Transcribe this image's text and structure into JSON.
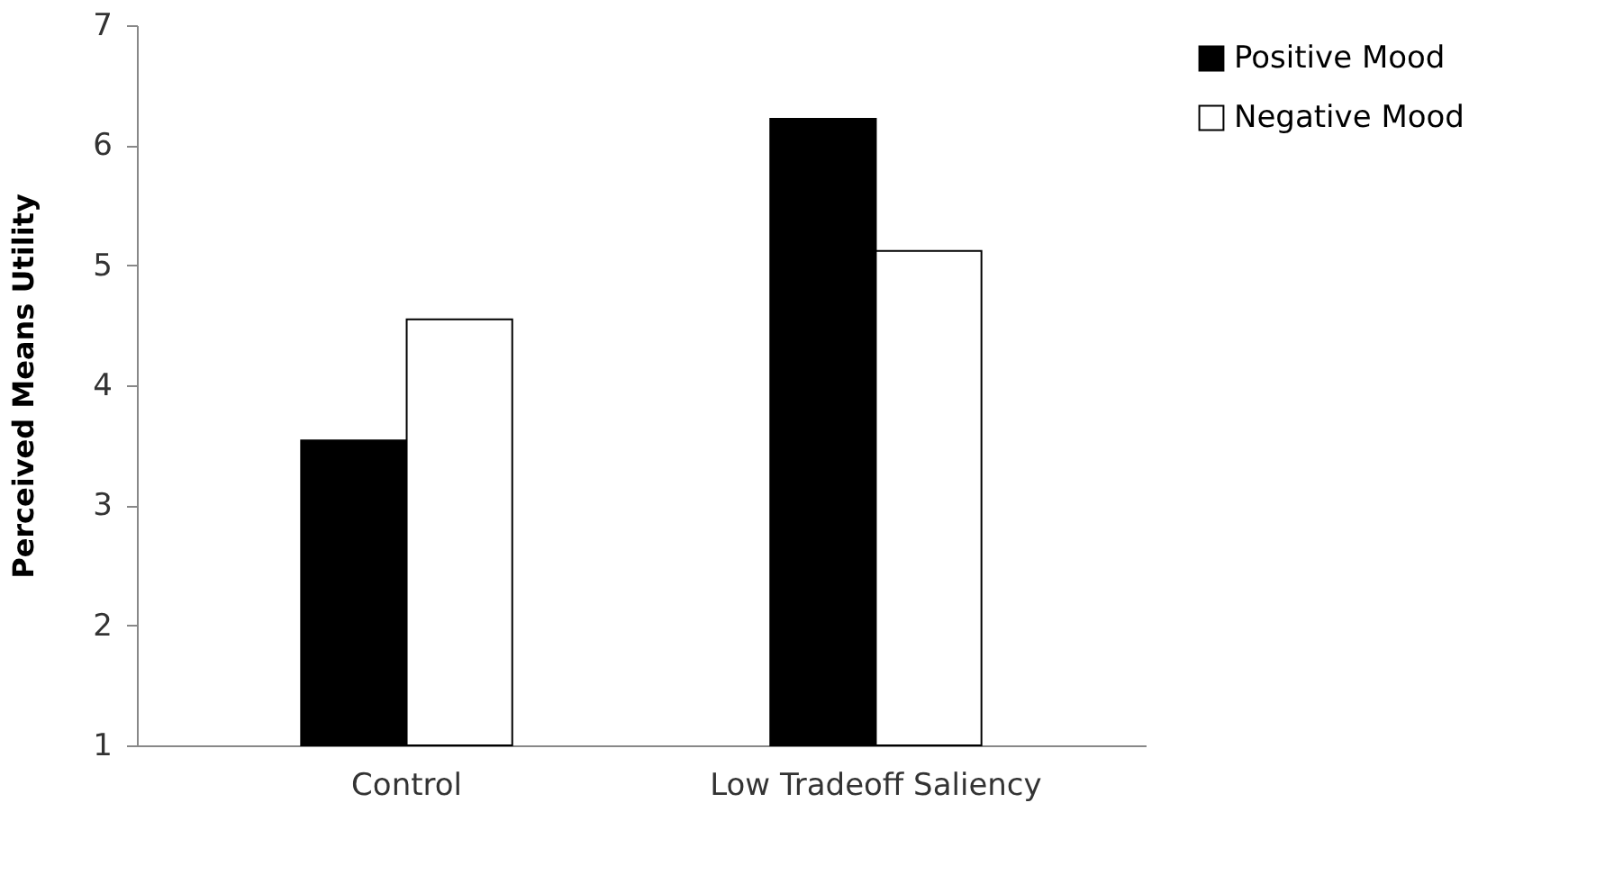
{
  "chart_data": {
    "type": "bar",
    "ylabel": "Perceived Means Utility",
    "categories": [
      "Control",
      "Low Tradeoff Saliency"
    ],
    "series": [
      {
        "name": "Positive Mood",
        "color": "#000000",
        "values": [
          3.54,
          6.22
        ]
      },
      {
        "name": "Negative Mood",
        "color": "#ffffff",
        "values": [
          4.55,
          5.12
        ]
      }
    ],
    "ylim": [
      1,
      7
    ],
    "yticks": [
      1,
      2,
      3,
      4,
      5,
      6,
      7
    ],
    "grid": false,
    "legend": "right"
  }
}
